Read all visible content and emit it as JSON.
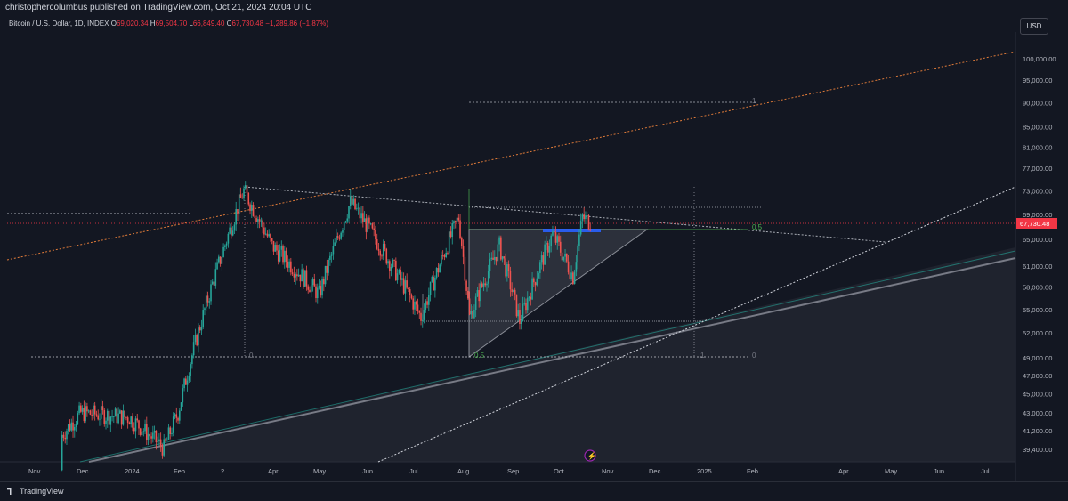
{
  "header": {
    "published_text": "christophercolumbus published on TradingView.com, Oct 21, 2024 20:04 UTC"
  },
  "symbol_line": {
    "name": "Bitcoin / U.S. Dollar, 1D, INDEX",
    "o_label": "O",
    "o": "69,020.34",
    "h_label": "H",
    "h": "69,504.70",
    "l_label": "L",
    "l": "66,849.40",
    "c_label": "C",
    "c": "67,730.48",
    "change": "−1,289.86 (−1.87%)"
  },
  "currency_button": "USD",
  "footer": {
    "brand": "TradingView"
  },
  "colors": {
    "background": "#131722",
    "up": "#26a69a",
    "down": "#ef5350",
    "last_price_bg": "#f23645",
    "fib_green": "#4caf50",
    "orange_line": "#e07b39",
    "blue_zone": "#2962ff"
  },
  "chart_data": {
    "type": "candlestick",
    "y_axis_labels": [
      "100,000.00",
      "95,000.00",
      "90,000.00",
      "85,000.00",
      "81,000.00",
      "77,000.00",
      "73,000.00",
      "69,000.00",
      "65,000.00",
      "61,000.00",
      "58,000.00",
      "55,000.00",
      "52,000.00",
      "49,000.00",
      "47,000.00",
      "45,000.00",
      "43,000.00",
      "41,200.00",
      "39,400.00"
    ],
    "x_axis_labels": [
      "Nov",
      "Dec",
      "2024",
      "Feb",
      "2",
      "Apr",
      "May",
      "Jun",
      "Jul",
      "Aug",
      "Sep",
      "Oct",
      "Nov",
      "Dec",
      "2025",
      "Feb",
      "Apr",
      "May",
      "Jun",
      "Jul"
    ],
    "last_price": "67,730.48",
    "y_scale": "log",
    "annotations": {
      "fib_labels": [
        "1",
        "0.5",
        "0",
        "0.5",
        "1",
        "0"
      ]
    },
    "series_summary": [
      {
        "date": "2023-11",
        "close": 37500
      },
      {
        "date": "2023-12",
        "close": 43000
      },
      {
        "date": "2024-01",
        "close": 42500
      },
      {
        "date": "2024-01-23",
        "close": 39500
      },
      {
        "date": "2024-02",
        "close": 43000
      },
      {
        "date": "2024-02-28",
        "close": 62000
      },
      {
        "date": "2024-03-14",
        "close": 73000
      },
      {
        "date": "2024-04",
        "close": 64000
      },
      {
        "date": "2024-05-01",
        "close": 57000
      },
      {
        "date": "2024-05-21",
        "close": 71000
      },
      {
        "date": "2024-06",
        "close": 67000
      },
      {
        "date": "2024-07-05",
        "close": 54000
      },
      {
        "date": "2024-07-29",
        "close": 68500
      },
      {
        "date": "2024-08-05",
        "close": 54000
      },
      {
        "date": "2024-08-24",
        "close": 64000
      },
      {
        "date": "2024-09-06",
        "close": 53500
      },
      {
        "date": "2024-09-27",
        "close": 65800
      },
      {
        "date": "2024-10-10",
        "close": 59500
      },
      {
        "date": "2024-10-16",
        "close": 68500
      },
      {
        "date": "2024-10-21",
        "close": 67730
      }
    ]
  }
}
